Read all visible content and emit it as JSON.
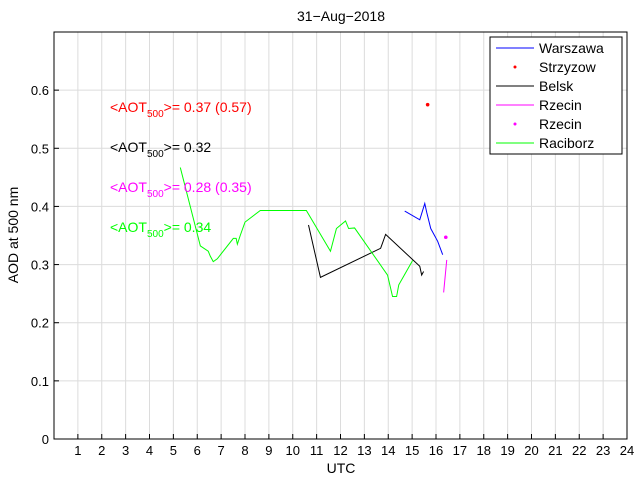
{
  "chart_data": {
    "type": "line",
    "title": "31−Aug−2018",
    "xlabel": "UTC",
    "ylabel": "AOD at 500 nm",
    "xlim": [
      0,
      24
    ],
    "ylim": [
      0,
      0.7
    ],
    "grid": true,
    "legend_position": "top-right",
    "xticks": [
      1,
      2,
      3,
      4,
      5,
      6,
      7,
      8,
      9,
      10,
      11,
      12,
      13,
      14,
      15,
      16,
      17,
      18,
      19,
      20,
      21,
      22,
      23,
      24
    ],
    "yticks": [
      0,
      0.1,
      0.2,
      0.3,
      0.4,
      0.5,
      0.6
    ],
    "ytick_labels": [
      "0",
      "0.1",
      "0.2",
      "0.3",
      "0.4",
      "0.5",
      "0.6"
    ],
    "series": [
      {
        "name": "Warszawa",
        "color": "#0000ff",
        "style": "line",
        "x": [
          14.69,
          15.32,
          15.53,
          15.61,
          15.78,
          16.07,
          16.28
        ],
        "y": [
          0.392,
          0.377,
          0.405,
          0.39,
          0.362,
          0.34,
          0.317
        ]
      },
      {
        "name": "Strzyzow",
        "color": "#ff0000",
        "style": "dot",
        "x": [
          15.65
        ],
        "y": [
          0.575
        ]
      },
      {
        "name": "Belsk",
        "color": "#000000",
        "style": "line",
        "x": [
          10.66,
          11.16,
          13.68,
          13.76,
          13.89,
          15.32,
          15.4,
          15.48
        ],
        "y": [
          0.368,
          0.278,
          0.328,
          0.337,
          0.352,
          0.297,
          0.282,
          0.288
        ]
      },
      {
        "name": "Rzecin",
        "color": "#ff00ff",
        "style": "line",
        "x": [
          16.32,
          16.45
        ],
        "y": [
          0.252,
          0.308
        ]
      },
      {
        "name": "Rzecin",
        "color": "#ff00ff",
        "style": "dot",
        "x": [
          16.41
        ],
        "y": [
          0.347
        ]
      },
      {
        "name": "Raciborz",
        "color": "#00ff00",
        "style": "line",
        "x": [
          5.29,
          6.13,
          6.46,
          6.54,
          6.67,
          6.84,
          7.51,
          7.63,
          7.68,
          7.8,
          8.0,
          8.64,
          10.57,
          11.58,
          11.83,
          12.21,
          12.34,
          12.59,
          13.97,
          14.18,
          14.35,
          14.44,
          15.02
        ],
        "y": [
          0.467,
          0.332,
          0.323,
          0.315,
          0.305,
          0.31,
          0.345,
          0.345,
          0.335,
          0.35,
          0.373,
          0.393,
          0.393,
          0.323,
          0.362,
          0.375,
          0.362,
          0.363,
          0.282,
          0.245,
          0.245,
          0.265,
          0.307
        ]
      }
    ],
    "annotations": [
      {
        "prefix": "<AOT",
        "sub": "500",
        "suffix": ">= 0.37 (0.57)",
        "color": "#ff0000"
      },
      {
        "prefix": "<AOT",
        "sub": "500",
        "suffix": ">= 0.32",
        "color": "#000000"
      },
      {
        "prefix": "<AOT",
        "sub": "500",
        "suffix": ">= 0.28 (0.35)",
        "color": "#ff00ff"
      },
      {
        "prefix": "<AOT",
        "sub": "500",
        "suffix": ">= 0.34",
        "color": "#00ff00"
      }
    ]
  }
}
